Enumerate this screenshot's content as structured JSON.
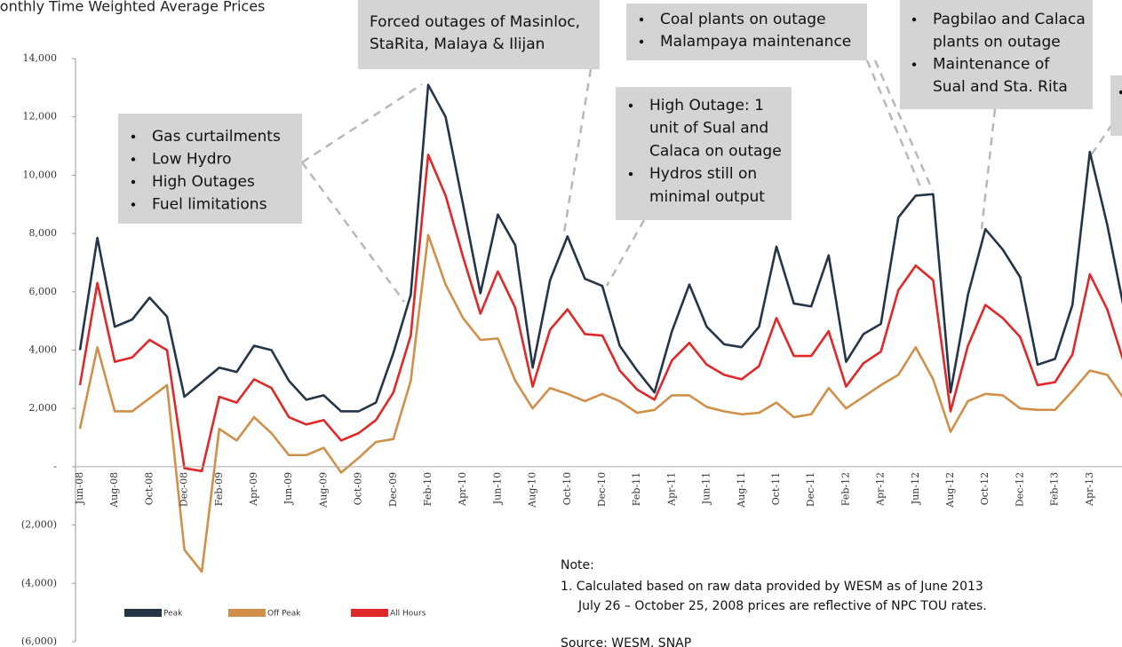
{
  "chart_data": {
    "type": "line",
    "title": "Monthly Time Weighted Average Prices",
    "categories": [
      "Jun-08",
      null,
      "Aug-08",
      null,
      "Oct-08",
      null,
      "Dec-08",
      null,
      "Feb-09",
      null,
      "Apr-09",
      null,
      "Jun-09",
      null,
      "Aug-09",
      null,
      "Oct-09",
      null,
      "Dec-09",
      null,
      "Feb-10",
      null,
      "Apr-10",
      null,
      "Jun-10",
      null,
      "Aug-10",
      null,
      "Oct-10",
      null,
      "Dec-10",
      null,
      "Feb-11",
      null,
      "Apr-11",
      null,
      "Jun-11",
      null,
      "Aug-11",
      null,
      "Oct-11",
      null,
      "Dec-11",
      null,
      "Feb-12",
      null,
      "Apr-12",
      null,
      "Jun-12",
      null,
      "Aug-12",
      null,
      "Oct-12",
      null,
      "Dec-12",
      null,
      "Feb-13",
      null,
      "Apr-13",
      null,
      null
    ],
    "series": [
      {
        "name": "Peak",
        "color": "#253548",
        "values": [
          4000,
          7850,
          4800,
          5050,
          5800,
          5150,
          2400,
          2900,
          3400,
          3250,
          4150,
          4000,
          2950,
          2300,
          2450,
          1900,
          1900,
          2200,
          3900,
          5900,
          13100,
          12000,
          9000,
          5950,
          8650,
          7600,
          3400,
          6400,
          7900,
          6450,
          6200,
          4150,
          3300,
          2550,
          4650,
          6250,
          4800,
          4200,
          4100,
          4800,
          7550,
          5600,
          5500,
          7250,
          3600,
          4550,
          4900,
          8550,
          9300,
          9350,
          2550,
          5900,
          8150,
          7450,
          6500,
          3500,
          3700,
          5550,
          10800,
          8300,
          5300
        ]
      },
      {
        "name": "Off Peak",
        "color": "#d0904a",
        "values": [
          1300,
          4100,
          1900,
          1900,
          2350,
          2800,
          -2850,
          -3600,
          1300,
          900,
          1700,
          1150,
          400,
          400,
          650,
          -200,
          300,
          850,
          950,
          2950,
          7950,
          6250,
          5100,
          4350,
          4400,
          2950,
          2000,
          2700,
          2500,
          2250,
          2500,
          2250,
          1850,
          1950,
          2450,
          2450,
          2050,
          1900,
          1800,
          1850,
          2200,
          1700,
          1800,
          2700,
          2000,
          2400,
          2800,
          3150,
          4100,
          3000,
          1200,
          2250,
          2500,
          2450,
          2000,
          1950,
          1950,
          2600,
          3300,
          3150,
          2300
        ]
      },
      {
        "name": "All Hours",
        "color": "#e02828",
        "values": [
          2800,
          6300,
          3600,
          3750,
          4350,
          4000,
          -50,
          -150,
          2400,
          2200,
          3000,
          2700,
          1700,
          1450,
          1600,
          900,
          1150,
          1600,
          2550,
          4500,
          10700,
          9300,
          7200,
          5250,
          6700,
          5450,
          2750,
          4700,
          5400,
          4550,
          4500,
          3300,
          2650,
          2300,
          3650,
          4250,
          3500,
          3150,
          3000,
          3450,
          5100,
          3800,
          3800,
          4650,
          2750,
          3550,
          3950,
          6050,
          6900,
          6400,
          1900,
          4150,
          5550,
          5100,
          4450,
          2800,
          2900,
          3850,
          6600,
          5400,
          3500
        ]
      }
    ],
    "ylim": [
      -6000,
      14000
    ],
    "yticks": [
      {
        "value": -6000,
        "label": "(6,000)"
      },
      {
        "value": -4000,
        "label": "(4,000)"
      },
      {
        "value": -2000,
        "label": "(2,000)"
      },
      {
        "value": 0,
        "label": "-"
      },
      {
        "value": 2000,
        "label": "2,000"
      },
      {
        "value": 4000,
        "label": "4,000"
      },
      {
        "value": 6000,
        "label": "6,000"
      },
      {
        "value": 8000,
        "label": "8,000"
      },
      {
        "value": 10000,
        "label": "10,000"
      },
      {
        "value": 12000,
        "label": "12,000"
      },
      {
        "value": 14000,
        "label": "14,000"
      }
    ]
  },
  "annotations": [
    {
      "items": [
        "Gas curtailments",
        "Low Hydro",
        "High Outages",
        "Fuel limitations"
      ]
    },
    {
      "lines": [
        "Forced outages of  Masinloc,",
        "StaRita, Malaya & Ilijan"
      ]
    },
    {
      "items": [
        "Coal plants on outage",
        "Malampaya maintenance"
      ]
    },
    {
      "items": [
        [
          "High Outage: 1",
          "unit of Sual and",
          "Calaca on outage"
        ],
        [
          "Hydros still on",
          "minimal output"
        ]
      ]
    },
    {
      "items": [
        [
          "Pagbilao and Calaca",
          "plants on outage"
        ],
        [
          "Maintenance of",
          "Sual and Sta. Rita"
        ]
      ]
    }
  ],
  "note": {
    "heading": "Note:",
    "lines": [
      "1.  Calculated based on raw data provided by WESM as of June 2013",
      "July 26 – October 25, 2008 prices are reflective of NPC TOU rates."
    ],
    "source": "Source: WESM, SNAP"
  }
}
